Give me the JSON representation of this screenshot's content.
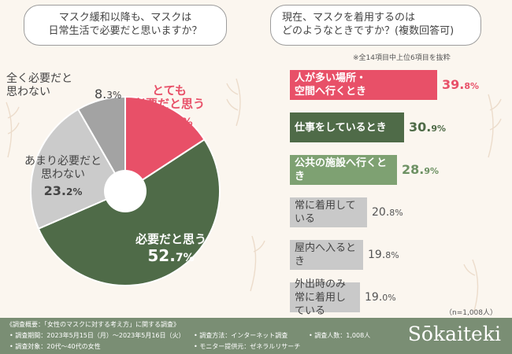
{
  "questions": {
    "q1": "マスク緩和以降も、マスクは\n日常生活で必要だと思いますか？",
    "q2": "現在、マスクを着用するのは\nどのようなときですか？(複数回答可)"
  },
  "notes": {
    "top6": "※全14項目中上位6項目を抜粋",
    "n": "（n=1,008人）"
  },
  "chart_data": [
    {
      "type": "pie",
      "title": "マスク緩和以降も、マスクは日常生活で必要だと思いますか？",
      "unit": "%",
      "slices": [
        {
          "label": "とても\n必要だと思う",
          "value": 15.8,
          "color": "#e85068"
        },
        {
          "label": "必要だと思う",
          "value": 52.7,
          "color": "#4f6b48"
        },
        {
          "label": "あまり必要だと\n思わない",
          "value": 23.2,
          "color": "#cbcbcb"
        },
        {
          "label": "全く必要だと\n思わない",
          "value": 8.3,
          "color": "#a3a3a3"
        }
      ]
    },
    {
      "type": "bar",
      "title": "現在、マスクを着用するのはどのようなときですか？(複数回答可)",
      "unit": "%",
      "categories": [
        "人が多い場所・\n空間へ行くとき",
        "仕事をしているとき",
        "公共の施設へ行くとき",
        "常に着用している",
        "屋内へ入るとき",
        "外出時のみ\n常に着用している"
      ],
      "values": [
        39.8,
        30.9,
        28.9,
        20.8,
        19.8,
        19.0
      ],
      "colors": [
        "#e85068",
        "#4f6b48",
        "#7ea172",
        "#c9c9c9",
        "#c9c9c9",
        "#c9c9c9"
      ],
      "text_colors": [
        "#ffffff",
        "#ffffff",
        "#ffffff",
        "#444444",
        "#444444",
        "#444444"
      ],
      "value_colors": [
        "#e85068",
        "#4f6b48",
        "#6d9163",
        "#555555",
        "#555555",
        "#555555"
      ]
    }
  ],
  "footer": {
    "overview": "《調査概要：「女性のマスクに対する考え方」に関する調査》",
    "period": "• 調査期間：2023年5月15日（月）〜2023年5月16日（火）",
    "method": "• 調査方法：インターネット調査",
    "count": "• 調査人数：1,008人",
    "target": "• 調査対象：20代〜40代の女性",
    "provider": "• モニター提供元：ゼネラルリサーチ",
    "brand": "Sōkaiteki"
  }
}
